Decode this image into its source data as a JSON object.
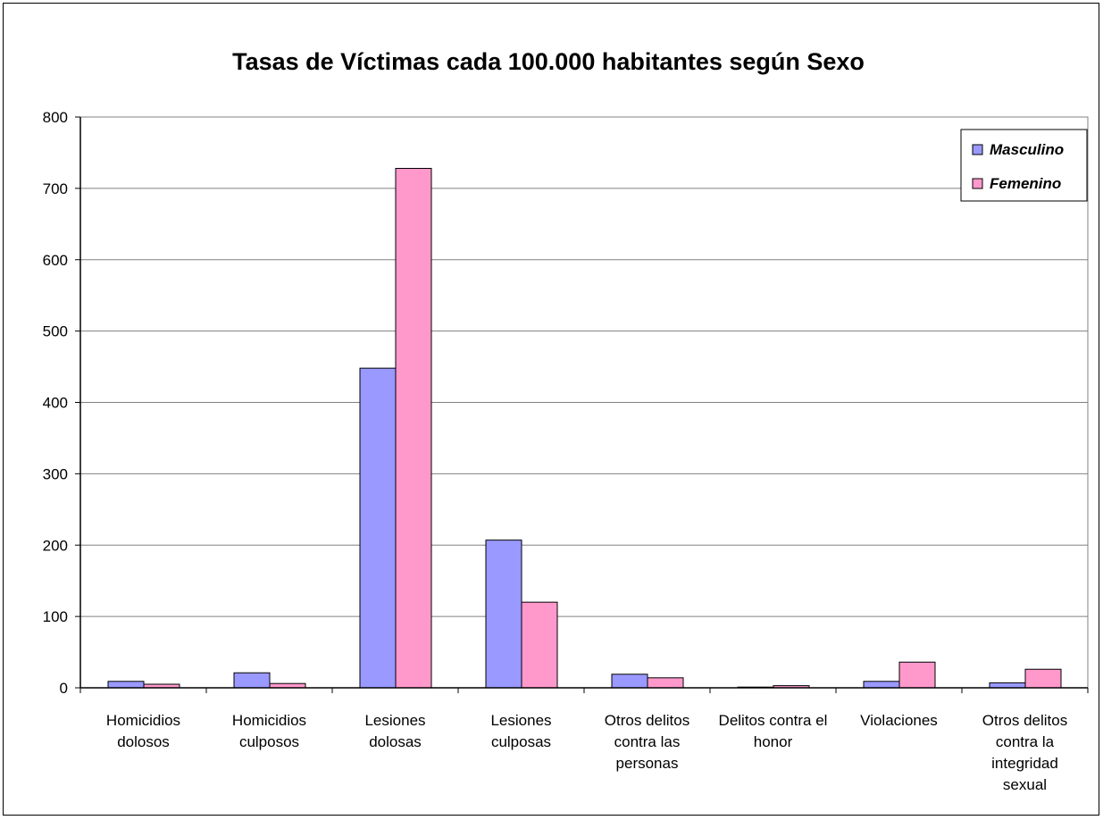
{
  "chart_data": {
    "type": "bar",
    "title": "Tasas de Víctimas cada 100.000 habitantes según Sexo",
    "xlabel": "",
    "ylabel": "",
    "ylim": [
      0,
      800
    ],
    "yticks": [
      0,
      100,
      200,
      300,
      400,
      500,
      600,
      700,
      800
    ],
    "grid": true,
    "legend_position": "top-right",
    "categories": [
      [
        "Homicidios",
        "dolosos"
      ],
      [
        "Homicidios",
        "culposos"
      ],
      [
        "Lesiones",
        "dolosas"
      ],
      [
        "Lesiones",
        "culposas"
      ],
      [
        "Otros delitos",
        "contra las",
        "personas"
      ],
      [
        "Delitos contra el",
        "honor"
      ],
      [
        "Violaciones"
      ],
      [
        "Otros delitos",
        "contra la",
        "integridad",
        "sexual"
      ]
    ],
    "series": [
      {
        "name": "Masculino",
        "color": "#9999FF",
        "values": [
          9,
          21,
          448,
          207,
          19,
          1,
          9,
          7
        ]
      },
      {
        "name": "Femenino",
        "color": "#FF99CC",
        "values": [
          5,
          6,
          728,
          120,
          14,
          3,
          36,
          26
        ]
      }
    ]
  }
}
